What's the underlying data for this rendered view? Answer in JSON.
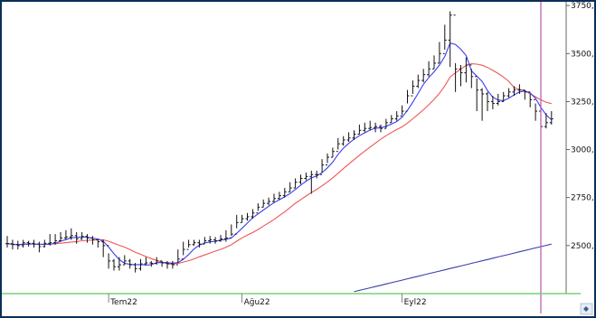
{
  "chart_data": {
    "type": "ohlc",
    "y_axis": {
      "ticks": [
        "3750,",
        "3500,",
        "3250,",
        "3000,",
        "2750,",
        "2500,"
      ],
      "ylim": [
        2250,
        3760
      ],
      "position": "right"
    },
    "x_axis": {
      "ticks": [
        "Tem22",
        "Ağu22",
        "Eyl22"
      ]
    },
    "grid": true,
    "bars_summary": {
      "description_free": true,
      "close": [
        2510,
        2505,
        2500,
        2515,
        2512,
        2508,
        2495,
        2512,
        2515,
        2525,
        2540,
        2545,
        2552,
        2535,
        2548,
        2540,
        2530,
        2520,
        2500,
        2420,
        2390,
        2400,
        2420,
        2400,
        2380,
        2405,
        2410,
        2408,
        2420,
        2410,
        2405,
        2400,
        2430,
        2480,
        2505,
        2515,
        2508,
        2525,
        2530,
        2525,
        2535,
        2540,
        2560,
        2620,
        2640,
        2650,
        2670,
        2700,
        2720,
        2730,
        2745,
        2760,
        2780,
        2800,
        2830,
        2850,
        2860,
        2870,
        2870,
        2920,
        2960,
        2990,
        3030,
        3050,
        3060,
        3080,
        3100,
        3110,
        3115,
        3120,
        3110,
        3140,
        3160,
        3175,
        3200,
        3280,
        3330,
        3360,
        3390,
        3420,
        3450,
        3500,
        3570,
        3700,
        3420,
        3400,
        3440,
        3380,
        3310,
        3290,
        3250,
        3240,
        3250,
        3280,
        3300,
        3310,
        3310,
        3300,
        3260,
        3200,
        3120,
        3140,
        3160
      ],
      "high": [
        2550,
        2530,
        2525,
        2530,
        2525,
        2530,
        2520,
        2530,
        2560,
        2560,
        2570,
        2580,
        2590,
        2570,
        2570,
        2560,
        2550,
        2530,
        2530,
        2460,
        2430,
        2440,
        2450,
        2430,
        2410,
        2430,
        2440,
        2420,
        2440,
        2420,
        2420,
        2420,
        2480,
        2520,
        2530,
        2530,
        2530,
        2545,
        2550,
        2545,
        2555,
        2580,
        2610,
        2660,
        2660,
        2670,
        2690,
        2720,
        2740,
        2750,
        2770,
        2780,
        2800,
        2830,
        2850,
        2870,
        2880,
        2890,
        2890,
        2950,
        2980,
        3010,
        3060,
        3070,
        3090,
        3100,
        3130,
        3140,
        3150,
        3140,
        3130,
        3160,
        3180,
        3200,
        3230,
        3310,
        3360,
        3390,
        3420,
        3460,
        3490,
        3560,
        3650,
        3720,
        3450,
        3440,
        3480,
        3420,
        3370,
        3320,
        3300,
        3280,
        3290,
        3300,
        3320,
        3330,
        3340,
        3310,
        3290,
        3240,
        3200,
        3190,
        3200
      ],
      "low": [
        2490,
        2480,
        2480,
        2490,
        2495,
        2490,
        2465,
        2490,
        2500,
        2505,
        2520,
        2530,
        2530,
        2510,
        2530,
        2515,
        2505,
        2490,
        2440,
        2380,
        2370,
        2370,
        2400,
        2380,
        2360,
        2370,
        2400,
        2390,
        2400,
        2390,
        2380,
        2380,
        2410,
        2450,
        2490,
        2500,
        2490,
        2510,
        2510,
        2510,
        2520,
        2520,
        2550,
        2590,
        2620,
        2630,
        2640,
        2680,
        2700,
        2710,
        2725,
        2740,
        2750,
        2780,
        2800,
        2820,
        2840,
        2770,
        2850,
        2880,
        2930,
        2960,
        3000,
        3020,
        3040,
        3050,
        3080,
        3090,
        3100,
        3090,
        3090,
        3110,
        3140,
        3150,
        3180,
        3240,
        3290,
        3320,
        3350,
        3380,
        3420,
        3450,
        3520,
        3430,
        3300,
        3330,
        3350,
        3320,
        3200,
        3150,
        3200,
        3210,
        3230,
        3250,
        3270,
        3280,
        3290,
        3260,
        3220,
        3150,
        3050,
        3110,
        3130
      ]
    },
    "series": [
      {
        "color": "#3a3df0"
      },
      {
        "color": "#f05555"
      },
      {
        "color": "#3a3daa"
      }
    ],
    "colors": {
      "bars": "#111111",
      "grid": "#cfcfcf",
      "cursor_line": "#b455b4",
      "bottom_line": "#76d276",
      "frame": "#0b2f57"
    }
  }
}
